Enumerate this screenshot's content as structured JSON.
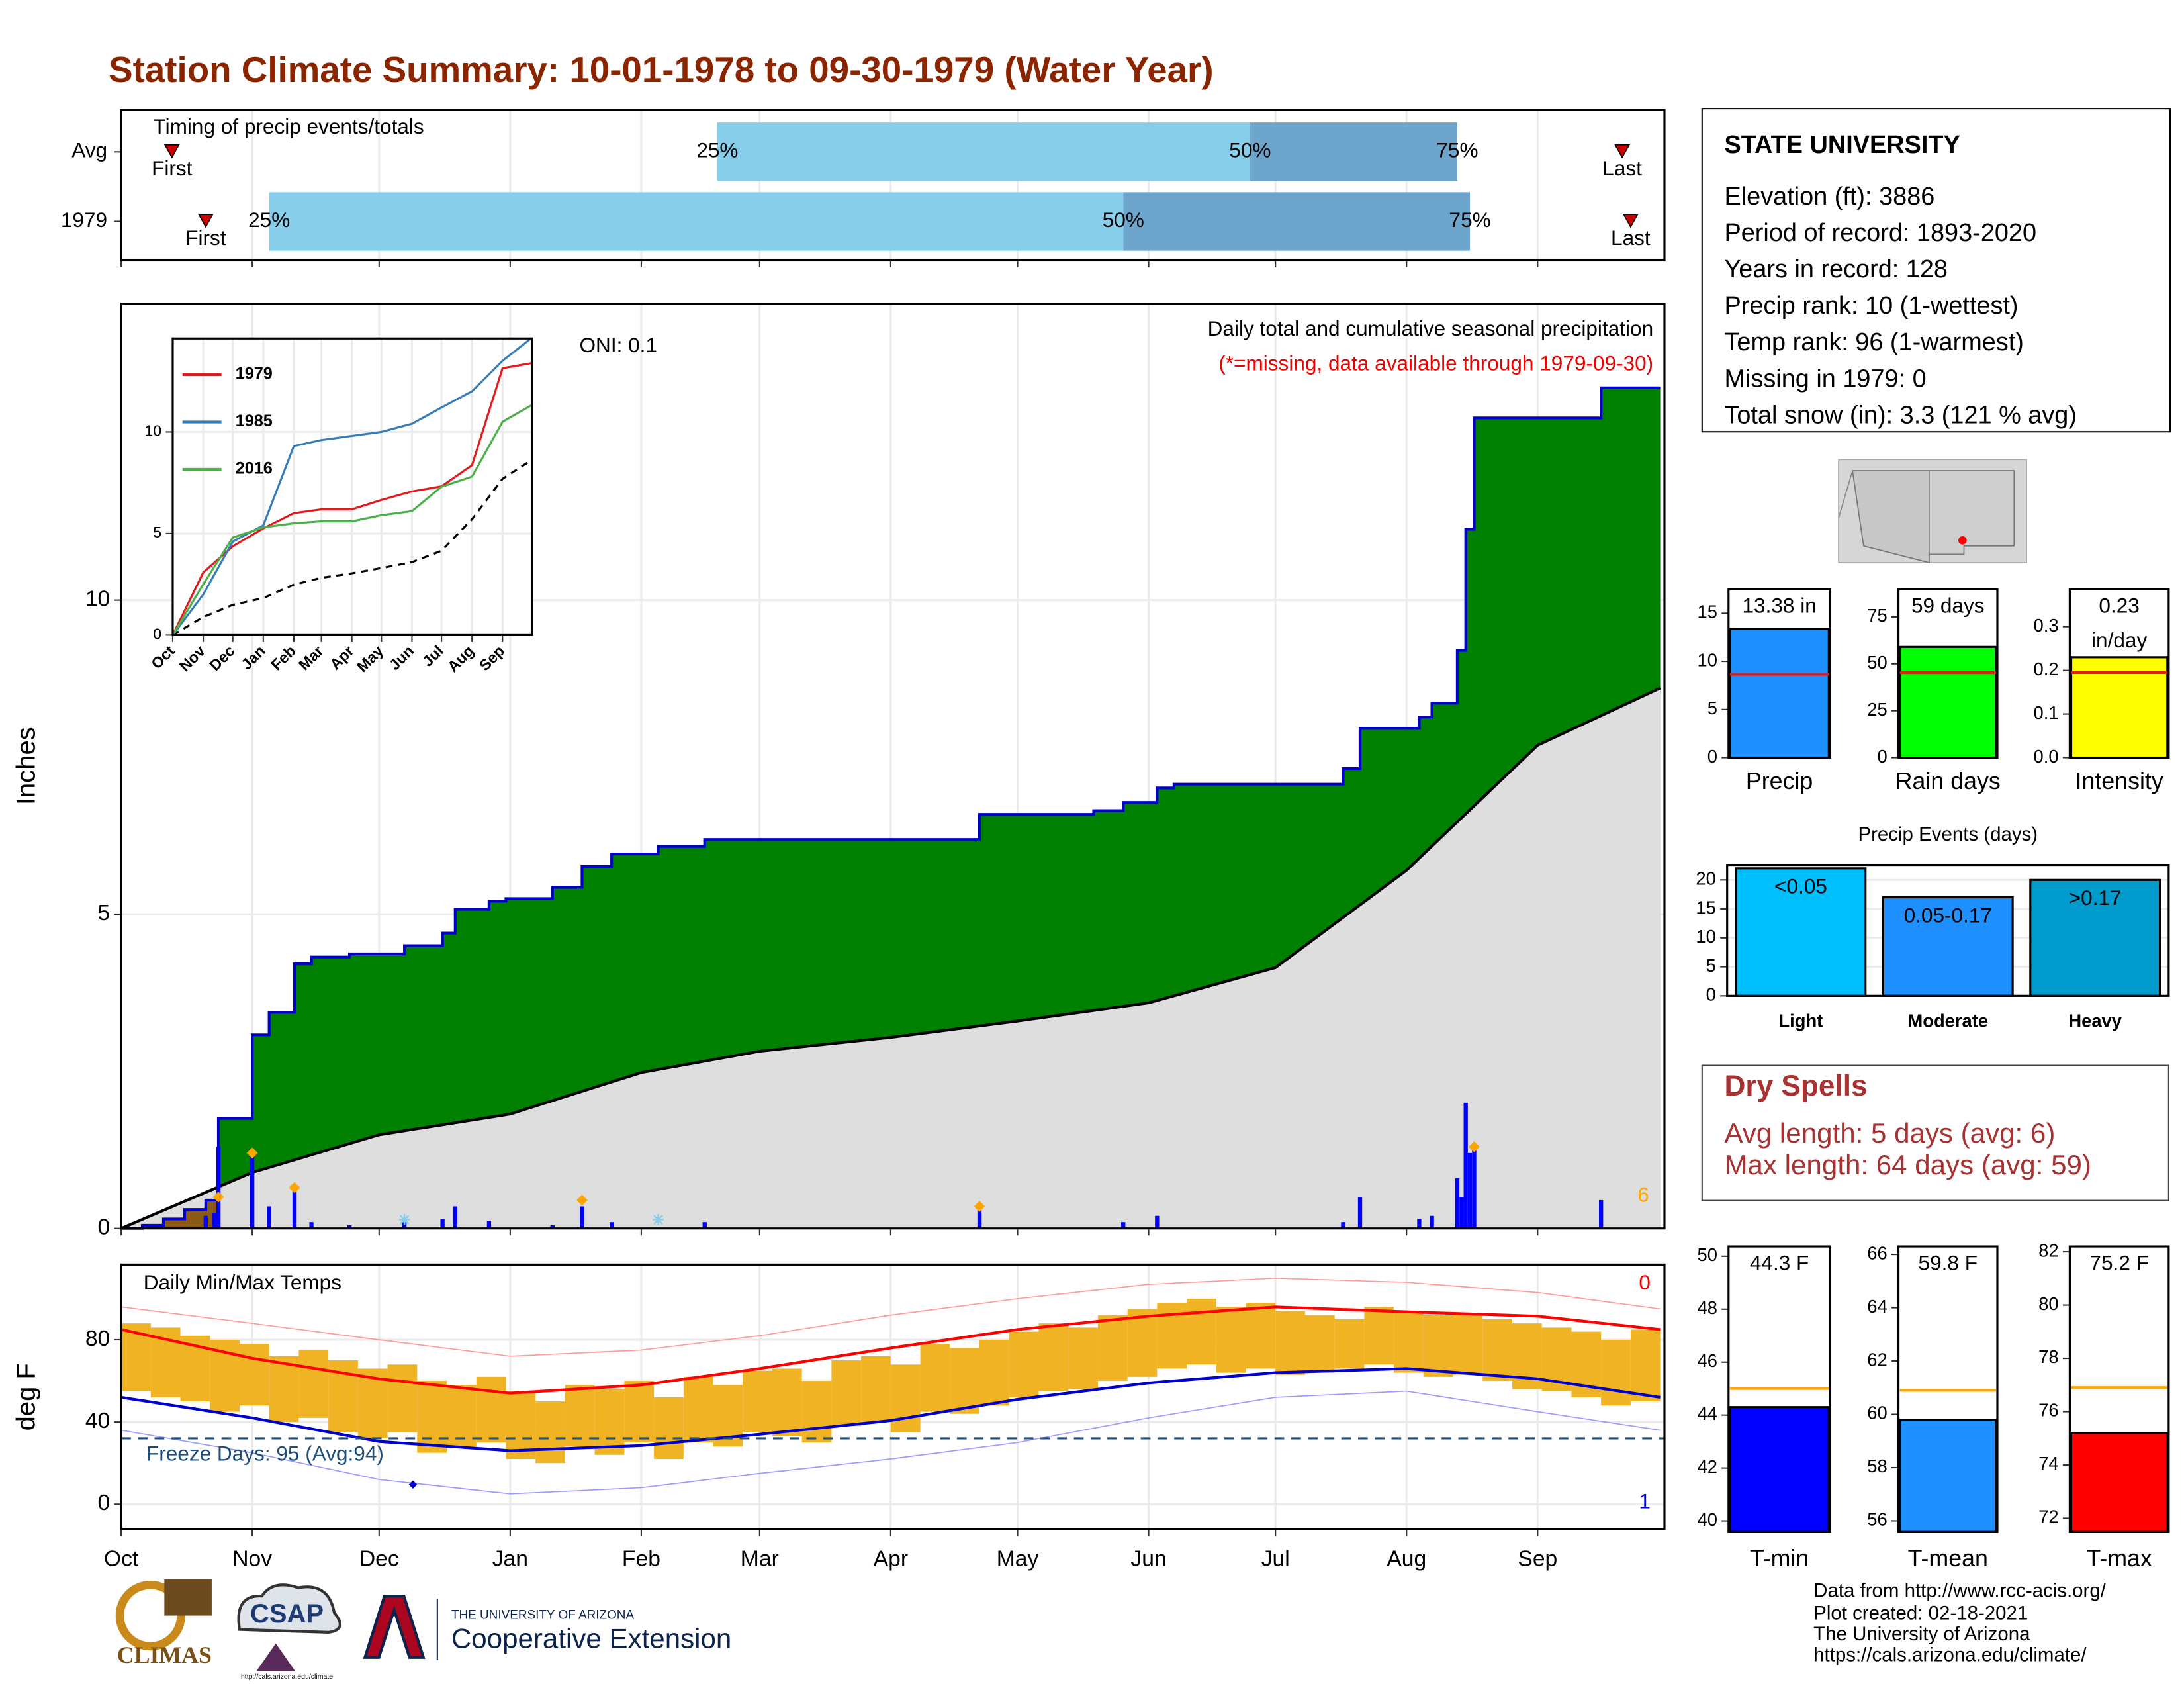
{
  "title": "Station Climate Summary: 10-01-1978 to 09-30-1979 (Water Year)",
  "chart_data": [
    {
      "type": "timing",
      "label": "Timing of precip events/totals",
      "categories": [
        "Avg",
        "1979"
      ],
      "xlim": [
        0,
        365
      ],
      "xticks": [
        0,
        31,
        61,
        92,
        123,
        151,
        182,
        212,
        243,
        273,
        304,
        335
      ],
      "colors": [
        "#87ceeb",
        "#6ea5cd"
      ],
      "marker_color": "#cc0000",
      "labels": {
        "first": "First",
        "p25": "25%",
        "p50": "50%",
        "p75": "75%",
        "last": "Last"
      },
      "rows": [
        {
          "first": 12,
          "p25": 141,
          "p50": 267,
          "p75": 316,
          "last": 355
        },
        {
          "first": 20,
          "p25": 35,
          "p50": 237,
          "p75": 319,
          "last": 357
        }
      ]
    },
    {
      "type": "area",
      "ylabel": "Inches",
      "xlim": [
        0,
        365
      ],
      "ylim": [
        0,
        14.72
      ],
      "yticks": [
        0,
        5,
        10
      ],
      "xticks": [
        0,
        31,
        61,
        92,
        123,
        151,
        182,
        212,
        243,
        273,
        304,
        335
      ],
      "grid": true,
      "annotations": {
        "oni": "ONI: 0.1",
        "desc": "Daily total and cumulative seasonal precipitation",
        "missing": "(*=missing, data available through 1979-09-30)",
        "snow_count": "6"
      },
      "deficit_color": "#8b5a14",
      "cumulative": {
        "color": "#008000",
        "line_color": "#0000cd",
        "x": [
          0,
          5,
          10,
          15,
          20,
          23,
          31,
          35,
          41,
          45,
          54,
          67,
          76,
          79,
          87,
          91,
          102,
          109,
          116,
          127,
          138,
          203,
          230,
          237,
          245,
          249,
          289,
          293,
          307,
          310,
          316,
          318,
          320,
          350,
          364
        ],
        "values": [
          0,
          0.05,
          0.15,
          0.3,
          0.45,
          1.75,
          3.08,
          3.44,
          4.21,
          4.32,
          4.37,
          4.5,
          4.7,
          5.08,
          5.21,
          5.25,
          5.43,
          5.76,
          5.96,
          6.08,
          6.19,
          6.59,
          6.65,
          6.78,
          7.01,
          7.07,
          7.32,
          7.96,
          8.14,
          8.36,
          9.2,
          11.13,
          12.9,
          13.38,
          13.38
        ]
      },
      "average": {
        "color": "#dedede",
        "line_color": "#000000",
        "x": [
          0,
          31,
          61,
          92,
          123,
          151,
          182,
          212,
          243,
          273,
          304,
          335,
          364
        ],
        "values": [
          0,
          0.89,
          1.49,
          1.82,
          2.48,
          2.82,
          3.04,
          3.3,
          3.59,
          4.15,
          5.7,
          7.69,
          8.6
        ]
      },
      "daily": {
        "color": "#0000ff",
        "x": [
          20,
          22,
          23,
          31,
          35,
          41,
          45,
          54,
          67,
          76,
          79,
          87,
          102,
          109,
          116,
          138,
          203,
          237,
          245,
          289,
          293,
          307,
          310,
          316,
          317,
          318,
          319,
          320,
          350
        ],
        "values": [
          0.2,
          0.25,
          1.3,
          1.2,
          0.35,
          0.7,
          0.1,
          0.05,
          0.1,
          0.15,
          0.35,
          0.12,
          0.05,
          0.35,
          0.1,
          0.1,
          0.35,
          0.1,
          0.2,
          0.1,
          0.5,
          0.15,
          0.2,
          0.8,
          0.5,
          2.0,
          1.2,
          1.3,
          0.45
        ]
      },
      "snow": {
        "color": "#ffa500",
        "x": [
          23,
          31,
          41,
          109,
          203,
          320
        ],
        "values": [
          0.5,
          1.2,
          0.65,
          0.45,
          0.35,
          1.3
        ]
      },
      "trace": {
        "color": "#87ceeb",
        "x": [
          67,
          127
        ],
        "values": [
          0.05,
          0.05
        ]
      }
    },
    {
      "type": "line",
      "xlim": [
        0,
        365
      ],
      "ylim": [
        0,
        14.6
      ],
      "yticks": [
        0,
        5,
        10
      ],
      "grid": true,
      "xticks": [
        {
          "value": 0,
          "label": "Oct"
        },
        {
          "value": 31,
          "label": "Nov"
        },
        {
          "value": 61,
          "label": "Dec"
        },
        {
          "value": 92,
          "label": "Jan"
        },
        {
          "value": 123,
          "label": "Feb"
        },
        {
          "value": 151,
          "label": "Mar"
        },
        {
          "value": 182,
          "label": "Apr"
        },
        {
          "value": 212,
          "label": "May"
        },
        {
          "value": 243,
          "label": "Jun"
        },
        {
          "value": 273,
          "label": "Jul"
        },
        {
          "value": 304,
          "label": "Aug"
        },
        {
          "value": 335,
          "label": "Sep"
        }
      ],
      "x": [
        0,
        31,
        61,
        92,
        123,
        151,
        182,
        212,
        243,
        273,
        304,
        335,
        364
      ],
      "series": [
        {
          "name": "1979",
          "color": "#e41a1c",
          "values": [
            0,
            3.08,
            4.37,
            5.25,
            6.0,
            6.19,
            6.19,
            6.65,
            7.07,
            7.32,
            8.36,
            13.13,
            13.38
          ]
        },
        {
          "name": "1985",
          "color": "#377eb8",
          "values": [
            0,
            2.0,
            4.6,
            5.4,
            9.3,
            9.6,
            9.8,
            10.0,
            10.4,
            11.2,
            12.0,
            13.5,
            14.6
          ]
        },
        {
          "name": "2016",
          "color": "#4daf4a",
          "values": [
            0,
            2.5,
            4.8,
            5.3,
            5.5,
            5.6,
            5.6,
            5.9,
            6.1,
            7.3,
            7.8,
            10.5,
            11.3
          ]
        }
      ],
      "average": {
        "color": "#000000",
        "dash": true,
        "values": [
          0,
          0.89,
          1.49,
          1.82,
          2.48,
          2.82,
          3.04,
          3.3,
          3.59,
          4.15,
          5.7,
          7.69,
          8.6
        ]
      }
    },
    {
      "type": "range_bar",
      "label": "Daily Min/Max Temps",
      "ylabel": "deg F",
      "xlim": [
        0,
        365
      ],
      "ylim": [
        -12.2,
        116.6
      ],
      "yticks": [
        0,
        40,
        80
      ],
      "grid": true,
      "xticks": [
        {
          "value": 0,
          "label": "Oct"
        },
        {
          "value": 31,
          "label": "Nov"
        },
        {
          "value": 61,
          "label": "Dec"
        },
        {
          "value": 92,
          "label": "Jan"
        },
        {
          "value": 123,
          "label": "Feb"
        },
        {
          "value": 151,
          "label": "Mar"
        },
        {
          "value": 182,
          "label": "Apr"
        },
        {
          "value": 212,
          "label": "May"
        },
        {
          "value": 243,
          "label": "Jun"
        },
        {
          "value": 273,
          "label": "Jul"
        },
        {
          "value": 304,
          "label": "Aug"
        },
        {
          "value": 335,
          "label": "Sep"
        }
      ],
      "bars": {
        "color": "#f0b323",
        "width": 7,
        "x": [
          0,
          7,
          14,
          21,
          28,
          35,
          42,
          49,
          56,
          63,
          70,
          77,
          84,
          91,
          98,
          105,
          112,
          119,
          126,
          133,
          140,
          147,
          154,
          161,
          168,
          175,
          182,
          189,
          196,
          203,
          210,
          217,
          224,
          231,
          238,
          245,
          252,
          259,
          266,
          273,
          280,
          287,
          294,
          301,
          308,
          315,
          322,
          329,
          336,
          343,
          350,
          357
        ],
        "tmax": [
          88,
          86,
          82,
          80,
          78,
          72,
          75,
          70,
          66,
          68,
          60,
          58,
          62,
          55,
          50,
          58,
          56,
          60,
          52,
          62,
          58,
          65,
          66,
          60,
          70,
          72,
          68,
          78,
          76,
          80,
          84,
          88,
          86,
          92,
          95,
          98,
          100,
          96,
          98,
          94,
          92,
          90,
          96,
          94,
          92,
          93,
          90,
          88,
          86,
          84,
          80,
          85
        ],
        "tmin": [
          55,
          52,
          50,
          45,
          48,
          40,
          42,
          35,
          32,
          35,
          25,
          28,
          30,
          22,
          20,
          28,
          24,
          30,
          22,
          30,
          28,
          35,
          33,
          30,
          38,
          40,
          35,
          45,
          44,
          48,
          52,
          55,
          56,
          60,
          62,
          66,
          68,
          64,
          66,
          63,
          64,
          66,
          68,
          64,
          62,
          63,
          60,
          56,
          55,
          52,
          48,
          50
        ]
      },
      "lines": {
        "x": [
          0,
          31,
          61,
          92,
          123,
          151,
          182,
          212,
          243,
          273,
          304,
          335,
          364
        ],
        "avg_max": [
          85,
          71,
          61,
          54,
          58,
          66,
          76,
          85,
          91.5,
          96,
          93.6,
          91.5,
          85
        ],
        "avg_min": [
          52,
          42,
          30.5,
          26,
          28.5,
          34,
          40.7,
          51,
          59,
          64,
          66,
          61,
          52
        ],
        "record_max": [
          96,
          88,
          80,
          72,
          75,
          82,
          92,
          100,
          107,
          110,
          108,
          103,
          95
        ],
        "record_min": [
          36,
          25,
          12,
          5,
          8,
          15,
          22,
          30,
          42,
          52,
          55,
          45,
          36
        ],
        "max_color": "#ff0000",
        "min_color": "#0000cd",
        "record_max_color": "#ff9a9a",
        "record_min_color": "#9a9aff"
      },
      "freeze": {
        "value": 32,
        "label": "Freeze Days: 95 (Avg:94)",
        "color": "#1f4e79"
      },
      "record_low_point": {
        "x": 69,
        "value": 9.5,
        "color": "#0000cd"
      },
      "record_high_count": "0",
      "record_low_count": "1"
    },
    {
      "type": "bar",
      "categories": [
        "Precip"
      ],
      "values": [
        13.38
      ],
      "value_labels": [
        "13.38 in"
      ],
      "color": "#1e90ff",
      "avg": 8.66,
      "avg_color": "#e41a1c",
      "ylim": [
        0,
        17.5
      ],
      "yticks": [
        0,
        5,
        10,
        15
      ]
    },
    {
      "type": "bar",
      "categories": [
        "Rain days"
      ],
      "values": [
        59
      ],
      "value_labels": [
        "59 days"
      ],
      "color": "#00ff00",
      "avg": 45.3,
      "avg_color": "#e41a1c",
      "ylim": [
        0,
        89.8
      ],
      "yticks": [
        0,
        25,
        50,
        75
      ]
    },
    {
      "type": "bar",
      "categories": [
        "Intensity"
      ],
      "values": [
        0.23
      ],
      "value_labels": [
        "0.23 in/day"
      ],
      "color": "#ffff00",
      "avg": 0.195,
      "avg_color": "#e41a1c",
      "ylim": [
        0,
        0.386
      ],
      "yticks": [
        {
          "value": 0,
          "label": "0.0"
        },
        {
          "value": 0.1,
          "label": "0.1"
        },
        {
          "value": 0.2,
          "label": "0.2"
        },
        {
          "value": 0.3,
          "label": "0.3"
        }
      ]
    },
    {
      "type": "bar",
      "title": "Precip Events (days)",
      "categories": [
        "Light",
        "Moderate",
        "Heavy"
      ],
      "values": [
        22,
        17,
        20
      ],
      "bin_labels": [
        "<0.05",
        "0.05-0.17",
        ">0.17"
      ],
      "colors": [
        "#00bfff",
        "#1e90ff",
        "#009acd"
      ],
      "ylim": [
        0,
        22.6
      ],
      "yticks": [
        0,
        5,
        10,
        15,
        20
      ],
      "grid": true
    },
    {
      "type": "bar",
      "categories": [
        "T-min"
      ],
      "values": [
        44.3
      ],
      "value_labels": [
        "44.3 F"
      ],
      "color": "#0000ff",
      "avg": 45.0,
      "avg_color": "#ffa500",
      "ylim": [
        39.58,
        50.37
      ],
      "yticks": [
        40,
        42,
        44,
        46,
        48,
        50
      ]
    },
    {
      "type": "bar",
      "categories": [
        "T-mean"
      ],
      "values": [
        59.8
      ],
      "value_labels": [
        "59.8 F"
      ],
      "color": "#1e90ff",
      "avg": 60.9,
      "avg_color": "#ffa500",
      "ylim": [
        55.58,
        66.3
      ],
      "yticks": [
        56,
        58,
        60,
        62,
        64,
        66
      ]
    },
    {
      "type": "bar",
      "categories": [
        "T-max"
      ],
      "values": [
        75.2
      ],
      "value_labels": [
        "75.2 F"
      ],
      "color": "#ff0000",
      "avg": 76.9,
      "avg_color": "#ffa500",
      "ylim": [
        71.48,
        82.2
      ],
      "yticks": [
        72,
        74,
        76,
        78,
        80,
        82
      ]
    }
  ],
  "station": {
    "name": "STATE UNIVERSITY",
    "lines": [
      "Elevation (ft): 3886",
      "Period of record: 1893-2020",
      "Years in record: 128",
      "Precip rank: 10 (1-wettest)",
      "Temp rank: 96 (1-warmest)",
      "Missing in 1979: 0",
      "Total snow (in): 3.3 (121 % avg)"
    ]
  },
  "dry_spells": {
    "title": "Dry Spells",
    "lines": [
      "Avg length: 5 days (avg: 6)",
      "Max length: 64 days (avg: 59)"
    ]
  },
  "credits": [
    "Data from http://www.rcc-acis.org/",
    "Plot created: 02-18-2021",
    "The University of Arizona",
    "https://cals.arizona.edu/climate/"
  ],
  "logos": {
    "climas": "CLIMAS",
    "csap": "CSAP",
    "csap_url": "http://cals.arizona.edu/climate",
    "ua": "THE UNIVERSITY OF ARIZONA",
    "extension": "Cooperative Extension"
  }
}
